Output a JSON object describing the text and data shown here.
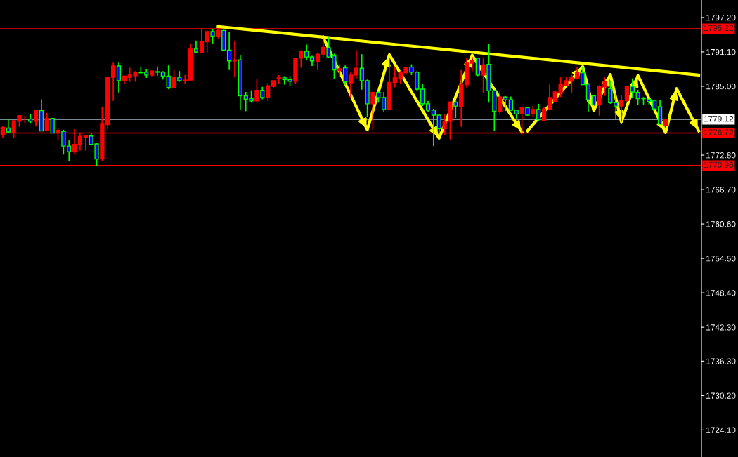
{
  "chart_data": {
    "type": "candlestick",
    "categories": [
      null,
      null,
      null,
      null,
      null,
      null,
      null,
      null,
      null,
      null,
      null,
      null,
      null,
      null,
      null,
      null,
      null,
      null,
      null,
      null,
      null,
      null,
      null,
      null,
      null,
      null,
      null,
      null,
      null,
      null,
      null,
      null,
      null,
      null,
      null,
      null,
      null,
      null,
      null,
      null,
      null,
      null,
      null,
      null,
      null,
      null,
      null,
      null,
      null,
      null,
      null,
      null,
      null,
      null,
      null,
      null,
      null,
      null,
      null,
      null,
      null,
      null,
      null,
      null,
      null,
      null,
      null,
      null,
      null,
      null,
      null,
      null,
      null,
      null,
      null,
      null,
      null,
      null,
      null,
      null,
      null,
      null,
      null,
      null,
      null,
      null,
      null,
      null,
      null,
      null,
      null,
      null,
      null,
      null,
      null,
      null,
      null,
      null,
      null,
      null,
      null,
      null,
      null,
      null,
      null,
      null,
      null,
      null,
      null,
      null,
      null,
      null,
      null,
      null,
      null,
      null,
      null,
      null,
      null,
      null,
      null,
      null,
      null,
      null,
      null,
      null,
      null
    ],
    "ohlc": [
      [
        1776.5,
        1777.9,
        1775.9,
        1777.7
      ],
      [
        1777.6,
        1779.2,
        1776.7,
        1776.9
      ],
      [
        1776.8,
        1778.9,
        1775.9,
        1778.9
      ],
      [
        1778.8,
        1779.9,
        1777.8,
        1779.8
      ],
      [
        1779.2,
        1779.8,
        1778.5,
        1779.2
      ],
      [
        1779.2,
        1780.1,
        1778.5,
        1778.8
      ],
      [
        1778.8,
        1780.7,
        1778.0,
        1780.7
      ],
      [
        1780.7,
        1782.7,
        1777.1,
        1777.1
      ],
      [
        1777.2,
        1780.3,
        1777.0,
        1779.3
      ],
      [
        1779.3,
        1779.3,
        1776.7,
        1776.7
      ],
      [
        1776.7,
        1777.6,
        1775.4,
        1777.2
      ],
      [
        1777.0,
        1777.3,
        1772.9,
        1774.4
      ],
      [
        1774.4,
        1775.4,
        1771.7,
        1773.4
      ],
      [
        1773.4,
        1777.4,
        1772.9,
        1774.7
      ],
      [
        1774.6,
        1776.8,
        1773.6,
        1776.1
      ],
      [
        1776.0,
        1776.4,
        1773.6,
        1776.2
      ],
      [
        1776.2,
        1776.8,
        1774.5,
        1774.7
      ],
      [
        1774.8,
        1775.0,
        1770.8,
        1772.1
      ],
      [
        1772.1,
        1781.3,
        1771.8,
        1778.4
      ],
      [
        1778.2,
        1786.8,
        1777.4,
        1786.6
      ],
      [
        1786.6,
        1789.2,
        1782.4,
        1788.6
      ],
      [
        1788.6,
        1789.2,
        1783.9,
        1786.0
      ],
      [
        1786.0,
        1786.9,
        1785.4,
        1786.8
      ],
      [
        1786.6,
        1788.3,
        1785.8,
        1787.0
      ],
      [
        1786.9,
        1787.7,
        1785.8,
        1787.5
      ],
      [
        1787.5,
        1788.5,
        1787.3,
        1787.4
      ],
      [
        1787.5,
        1788.0,
        1786.5,
        1787.0
      ],
      [
        1787.0,
        1787.8,
        1786.8,
        1787.7
      ],
      [
        1787.6,
        1788.5,
        1786.9,
        1787.5
      ],
      [
        1787.5,
        1787.7,
        1786.2,
        1786.8
      ],
      [
        1786.8,
        1788.7,
        1784.5,
        1784.8
      ],
      [
        1784.8,
        1787.9,
        1784.8,
        1786.6
      ],
      [
        1786.6,
        1787.7,
        1785.8,
        1786.0
      ],
      [
        1786.0,
        1787.0,
        1785.4,
        1786.1
      ],
      [
        1786.1,
        1792.5,
        1786.1,
        1791.6
      ],
      [
        1791.6,
        1793.1,
        1790.9,
        1791.1
      ],
      [
        1791.0,
        1795.3,
        1790.8,
        1793.0
      ],
      [
        1792.9,
        1794.9,
        1791.0,
        1794.7
      ],
      [
        1794.7,
        1795.1,
        1792.6,
        1793.9
      ],
      [
        1793.9,
        1795.3,
        1793.5,
        1794.9
      ],
      [
        1794.9,
        1795.3,
        1791.3,
        1791.4
      ],
      [
        1791.4,
        1794.7,
        1787.9,
        1789.5
      ],
      [
        1789.5,
        1793.1,
        1786.6,
        1789.7
      ],
      [
        1789.7,
        1790.6,
        1780.9,
        1783.3
      ],
      [
        1783.3,
        1784.0,
        1780.6,
        1782.7
      ],
      [
        1782.8,
        1784.3,
        1782.1,
        1782.4
      ],
      [
        1782.4,
        1786.3,
        1782.2,
        1784.3
      ],
      [
        1784.3,
        1784.9,
        1782.7,
        1783.0
      ],
      [
        1783.0,
        1785.6,
        1782.4,
        1785.1
      ],
      [
        1785.0,
        1786.0,
        1784.6,
        1786.0
      ],
      [
        1786.4,
        1787.0,
        1785.4,
        1786.5
      ],
      [
        1786.5,
        1786.8,
        1785.3,
        1786.2
      ],
      [
        1786.2,
        1786.8,
        1785.1,
        1785.9
      ],
      [
        1785.9,
        1790.0,
        1785.4,
        1789.9
      ],
      [
        1790.0,
        1791.4,
        1788.3,
        1791.2
      ],
      [
        1791.2,
        1792.4,
        1789.6,
        1790.2
      ],
      [
        1790.2,
        1790.4,
        1788.6,
        1789.5
      ],
      [
        1789.4,
        1791.0,
        1787.9,
        1790.7
      ],
      [
        1790.7,
        1793.5,
        1790.2,
        1791.9
      ],
      [
        1791.8,
        1793.8,
        1790.0,
        1790.2
      ],
      [
        1790.4,
        1790.8,
        1786.3,
        1787.9
      ],
      [
        1787.8,
        1788.9,
        1786.8,
        1788.1
      ],
      [
        1788.3,
        1788.7,
        1785.2,
        1785.8
      ],
      [
        1785.6,
        1787.5,
        1782.9,
        1787.0
      ],
      [
        1787.0,
        1791.4,
        1786.4,
        1788.2
      ],
      [
        1788.2,
        1790.7,
        1784.4,
        1786.0
      ],
      [
        1786.0,
        1786.2,
        1779.6,
        1781.9
      ],
      [
        1781.9,
        1784.1,
        1777.3,
        1783.9
      ],
      [
        1783.9,
        1784.1,
        1782.1,
        1783.0
      ],
      [
        1783.0,
        1784.0,
        1780.4,
        1780.9
      ],
      [
        1780.9,
        1790.0,
        1780.8,
        1785.7
      ],
      [
        1785.7,
        1788.4,
        1784.8,
        1786.5
      ],
      [
        1786.4,
        1787.7,
        1785.4,
        1787.5
      ],
      [
        1787.4,
        1788.5,
        1787.0,
        1788.4
      ],
      [
        1788.4,
        1788.9,
        1787.0,
        1787.5
      ],
      [
        1787.5,
        1787.7,
        1784.1,
        1784.5
      ],
      [
        1784.5,
        1785.5,
        1781.5,
        1781.9
      ],
      [
        1781.9,
        1782.4,
        1780.4,
        1780.8
      ],
      [
        1780.8,
        1781.0,
        1774.4,
        1779.9
      ],
      [
        1779.9,
        1780.0,
        1776.3,
        1777.5
      ],
      [
        1777.5,
        1780.0,
        1776.3,
        1778.8
      ],
      [
        1778.8,
        1782.3,
        1775.6,
        1782.2
      ],
      [
        1782.2,
        1782.5,
        1779.4,
        1781.5
      ],
      [
        1781.4,
        1787.9,
        1777.8,
        1785.4
      ],
      [
        1785.3,
        1790.0,
        1784.8,
        1789.1
      ],
      [
        1789.1,
        1790.2,
        1787.7,
        1789.6
      ],
      [
        1790.0,
        1790.0,
        1786.8,
        1787.0
      ],
      [
        1787.0,
        1790.0,
        1783.8,
        1788.8
      ],
      [
        1788.9,
        1792.5,
        1782.1,
        1784.2
      ],
      [
        1784.2,
        1784.4,
        1777.1,
        1780.6
      ],
      [
        1780.6,
        1784.1,
        1780.1,
        1783.1
      ],
      [
        1783.1,
        1783.3,
        1780.6,
        1782.6
      ],
      [
        1782.6,
        1783.2,
        1780.6,
        1780.8
      ],
      [
        1780.8,
        1780.9,
        1779.3,
        1780.1
      ],
      [
        1780.1,
        1781.3,
        1776.3,
        1781.2
      ],
      [
        1781.2,
        1781.3,
        1779.8,
        1779.9
      ],
      [
        1780.1,
        1781.5,
        1779.6,
        1780.9
      ],
      [
        1780.9,
        1781.9,
        1778.8,
        1779.1
      ],
      [
        1779.0,
        1781.3,
        1779.0,
        1781.0
      ],
      [
        1780.9,
        1785.3,
        1780.8,
        1783.0
      ],
      [
        1782.3,
        1784.2,
        1782.1,
        1784.0
      ],
      [
        1783.8,
        1786.6,
        1783.1,
        1785.4
      ],
      [
        1785.2,
        1786.6,
        1785.0,
        1786.0
      ],
      [
        1785.9,
        1787.0,
        1783.9,
        1786.6
      ],
      [
        1786.4,
        1788.5,
        1786.2,
        1787.5
      ],
      [
        1787.4,
        1788.5,
        1785.2,
        1785.3
      ],
      [
        1785.4,
        1785.6,
        1780.4,
        1782.6
      ],
      [
        1783.3,
        1783.5,
        1781.7,
        1781.7
      ],
      [
        1781.7,
        1785.2,
        1779.8,
        1785.0
      ],
      [
        1784.9,
        1786.6,
        1783.3,
        1785.8
      ],
      [
        1784.6,
        1786.0,
        1781.9,
        1782.1
      ],
      [
        1782.1,
        1783.7,
        1779.2,
        1781.5
      ],
      [
        1781.5,
        1783.5,
        1778.7,
        1782.5
      ],
      [
        1782.5,
        1785.0,
        1782.3,
        1784.9
      ],
      [
        1785.0,
        1786.4,
        1782.9,
        1784.0
      ],
      [
        1783.9,
        1784.4,
        1781.7,
        1782.8
      ],
      [
        1782.9,
        1783.1,
        1781.7,
        1782.8
      ],
      [
        1782.7,
        1782.8,
        1781.8,
        1782.3
      ],
      [
        1782.5,
        1782.6,
        1780.9,
        1781.0
      ],
      [
        1781.4,
        1782.5,
        1778.2,
        1778.3
      ],
      [
        1778.0,
        1779.3,
        1777.9,
        1779.1
      ],
      null,
      null,
      null,
      null,
      null,
      null
    ],
    "series": [
      {
        "type": "line",
        "color": "#ffff00",
        "values": [
          null,
          null,
          null,
          null,
          null,
          null,
          null,
          null,
          null,
          null,
          null,
          null,
          null,
          null,
          null,
          null,
          null,
          null,
          null,
          null,
          null,
          null,
          null,
          null,
          null,
          null,
          null,
          null,
          null,
          null,
          null,
          null,
          null,
          null,
          null,
          null,
          null,
          null,
          null,
          1795.6,
          null,
          null,
          null,
          null,
          null,
          null,
          null,
          null,
          null,
          null,
          null,
          null,
          null,
          null,
          null,
          null,
          null,
          null,
          null,
          null,
          null,
          null,
          null,
          null,
          null,
          null,
          null,
          null,
          null,
          null,
          null,
          null,
          null,
          null,
          null,
          null,
          null,
          null,
          null,
          null,
          null,
          null,
          null,
          null,
          null,
          null,
          null,
          null,
          null,
          null,
          null,
          null,
          null,
          null,
          null,
          null,
          null,
          null,
          null,
          null,
          null,
          null,
          null,
          null,
          null,
          null,
          null,
          null,
          null,
          null,
          null,
          null,
          null,
          null,
          null,
          null,
          null,
          null,
          null,
          null,
          null,
          null,
          null,
          null,
          null,
          null,
          1787.0
        ]
      },
      {
        "type": "line",
        "color": "#ffff00",
        "values": [
          null,
          null,
          null,
          null,
          null,
          null,
          null,
          null,
          null,
          null,
          null,
          null,
          null,
          null,
          null,
          null,
          null,
          null,
          null,
          null,
          null,
          null,
          null,
          null,
          null,
          null,
          null,
          null,
          null,
          null,
          null,
          null,
          null,
          null,
          null,
          null,
          null,
          null,
          null,
          null,
          null,
          null,
          null,
          null,
          null,
          null,
          null,
          null,
          null,
          null,
          null,
          null,
          null,
          null,
          null,
          null,
          null,
          null,
          1793.7,
          null,
          null,
          null,
          null,
          null,
          null,
          null,
          1777.3,
          null,
          null,
          null,
          1790.6,
          null,
          null,
          null,
          null,
          null,
          null,
          null,
          null,
          1775.8,
          null,
          null,
          null,
          null,
          null,
          1790.5,
          null,
          null,
          null,
          null,
          null,
          null,
          null,
          null,
          1776.9,
          null,
          null,
          null,
          null,
          null,
          null,
          null,
          null,
          null,
          null,
          null,
          null,
          null,
          null,
          null,
          null,
          null,
          null,
          null,
          null,
          null,
          null,
          null,
          null,
          null,
          null,
          null,
          null,
          null,
          null,
          null,
          null
        ]
      },
      {
        "type": "line",
        "color": "#ffff00",
        "values": [
          null,
          null,
          null,
          null,
          null,
          null,
          null,
          null,
          null,
          null,
          null,
          null,
          null,
          null,
          null,
          null,
          null,
          null,
          null,
          null,
          null,
          null,
          null,
          null,
          null,
          null,
          null,
          null,
          null,
          null,
          null,
          null,
          null,
          null,
          null,
          null,
          null,
          null,
          null,
          null,
          null,
          null,
          null,
          null,
          null,
          null,
          null,
          null,
          null,
          null,
          null,
          null,
          null,
          null,
          null,
          null,
          null,
          null,
          null,
          null,
          null,
          null,
          null,
          null,
          null,
          null,
          null,
          null,
          null,
          null,
          null,
          null,
          null,
          null,
          null,
          null,
          null,
          null,
          null,
          null,
          null,
          null,
          null,
          null,
          null,
          null,
          null,
          null,
          null,
          null,
          null,
          null,
          null,
          null,
          null,
          1777.1,
          null,
          null,
          null,
          null,
          null,
          null,
          null,
          null,
          null,
          1788.5,
          null,
          1780.7,
          null,
          null,
          1787.1,
          null,
          1778.7,
          null,
          null,
          1786.9,
          null,
          null,
          null,
          null,
          1776.8,
          null,
          1784.6,
          null,
          null,
          null,
          1777.1
        ]
      }
    ],
    "ylim": [
      1719.3,
      1800.3
    ],
    "yticks": [
      {
        "value": 1797.2,
        "label": "1797.20"
      },
      {
        "value": 1791.1,
        "label": "1791.10"
      },
      {
        "value": 1785.0,
        "label": "1785.00"
      },
      {
        "value": 1772.8,
        "label": "1772.80"
      },
      {
        "value": 1766.7,
        "label": "1766.70"
      },
      {
        "value": 1760.6,
        "label": "1760.60"
      },
      {
        "value": 1754.5,
        "label": "1754.50"
      },
      {
        "value": 1748.4,
        "label": "1748.40"
      },
      {
        "value": 1742.3,
        "label": "1742.30"
      },
      {
        "value": 1736.3,
        "label": "1736.30"
      },
      {
        "value": 1730.2,
        "label": "1730.20"
      },
      {
        "value": 1724.1,
        "label": "1724.10"
      }
    ],
    "ref_lines": [
      {
        "axis": "y",
        "value": 1795.22,
        "label": "1795.22",
        "color": "#ff0000"
      },
      {
        "axis": "y",
        "value": 1779.12,
        "label": "1779.12",
        "color": "#778899"
      },
      {
        "axis": "y",
        "value": 1776.72,
        "label": "1776.72",
        "color": "#ff0000"
      },
      {
        "axis": "y",
        "value": 1770.96,
        "label": "1770.96",
        "color": "#ff0000"
      }
    ],
    "tick_labels": "y",
    "grid": false,
    "legend": false
  }
}
